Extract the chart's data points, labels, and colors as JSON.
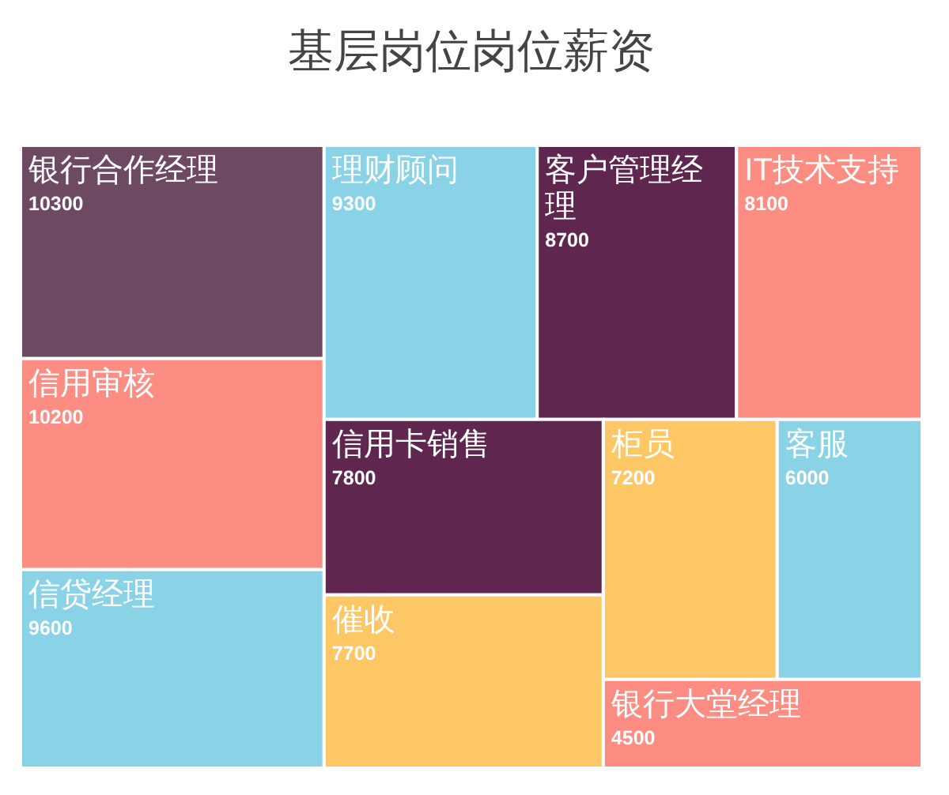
{
  "chart_data": {
    "type": "other",
    "title": "基层岗位岗位薪资",
    "categories": [
      "银行合作经理",
      "信用审核",
      "信贷经理",
      "理财顾问",
      "客户管理经理",
      "IT技术支持",
      "信用卡销售",
      "催收",
      "柜员",
      "客服",
      "银行大堂经理"
    ],
    "values": [
      10300,
      10200,
      9600,
      9300,
      8700,
      8100,
      7800,
      7700,
      7200,
      6000,
      4500
    ],
    "colors": [
      "#6d4a62",
      "#fd8d82",
      "#8ad3e6",
      "#8ad3e6",
      "#5f2750",
      "#fd8d82",
      "#5f2750",
      "#fec765",
      "#fec765",
      "#8ad3e6",
      "#fd8d82"
    ],
    "data_labels": true
  }
}
